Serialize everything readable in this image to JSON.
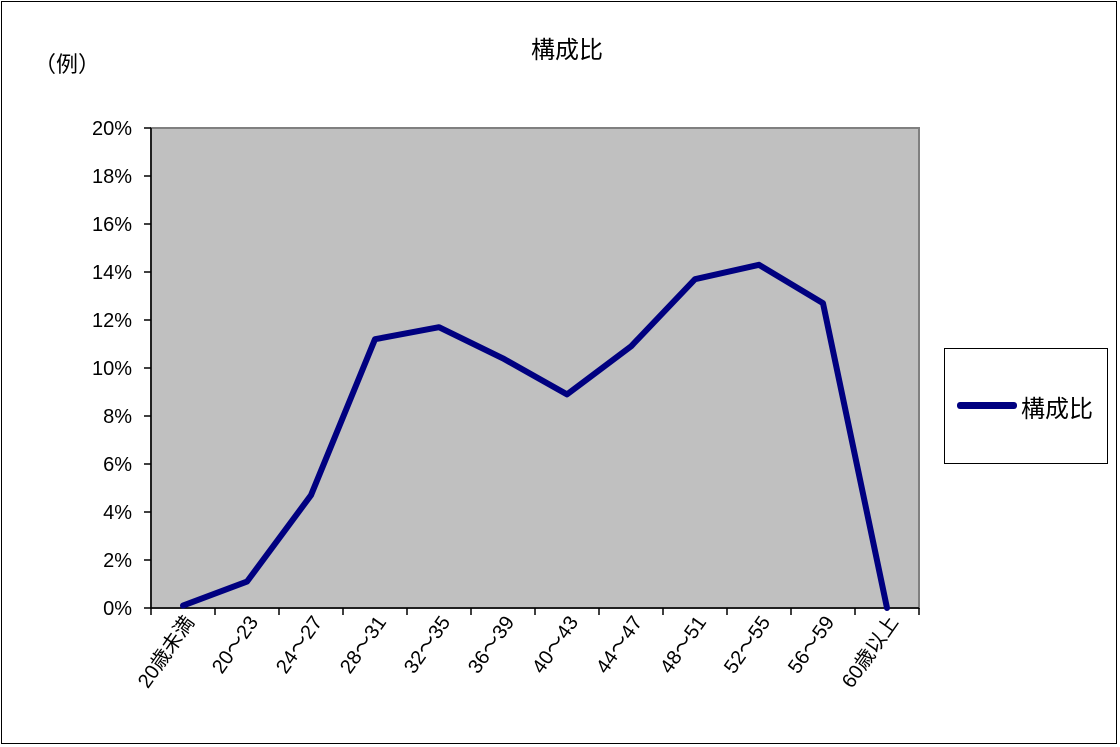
{
  "chart_data": {
    "type": "line",
    "title": "構成比",
    "unit_note": "（例）",
    "categories": [
      "20歳未満",
      "20～23",
      "24～27",
      "28～31",
      "32～35",
      "36～39",
      "40～43",
      "44～47",
      "48～51",
      "52～55",
      "56～59",
      "60歳以上"
    ],
    "series": [
      {
        "name": "構成比",
        "values": [
          0.1,
          1.1,
          4.7,
          11.2,
          11.7,
          10.4,
          8.9,
          10.9,
          13.7,
          14.3,
          12.7,
          0.0
        ]
      }
    ],
    "ylim": [
      0,
      20
    ],
    "y_ticks": [
      "0%",
      "2%",
      "4%",
      "6%",
      "8%",
      "10%",
      "12%",
      "14%",
      "16%",
      "18%",
      "20%"
    ],
    "legend_position": "right",
    "grid": false,
    "colors": {
      "plot_background": "#c0c0c0",
      "series_line": "#000080"
    }
  }
}
